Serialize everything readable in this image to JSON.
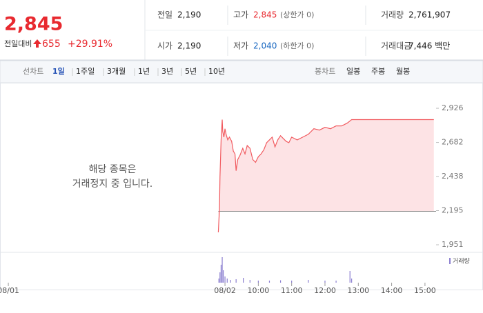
{
  "header": {
    "price": "2,845",
    "change_label": "전일대비",
    "change": "655",
    "change_rate": "+29.91%",
    "stats": [
      [
        {
          "label": "전일",
          "value": "2,190"
        },
        {
          "label": "고가",
          "value": "2,845",
          "note": "(상한가 0)"
        },
        {
          "label": "거래량",
          "value": "2,761,907"
        }
      ],
      [
        {
          "label": "시가",
          "value": "2,190"
        },
        {
          "label": "저가",
          "value": "2,040",
          "note": "(하한가 0)"
        },
        {
          "label": "거래대금",
          "value": "7,446 백만"
        }
      ]
    ],
    "prev_close": 2190
  },
  "tabs": {
    "line_label": "선차트",
    "line": [
      "1일",
      "1주일",
      "3개월",
      "1년",
      "3년",
      "5년",
      "10년"
    ],
    "candle_label": "봉차트",
    "candle": [
      "일봉",
      "주봉",
      "월봉"
    ]
  },
  "chart_data": {
    "type": "line",
    "annotation": [
      "해당 종목은",
      "거래정지 중 입니다."
    ],
    "x": [
      -12,
      -11,
      -10,
      -9,
      -7,
      -5,
      -4,
      -2,
      0,
      2,
      5,
      8,
      12,
      15,
      18,
      20,
      23,
      27,
      32,
      36,
      40,
      45,
      50,
      55,
      60,
      65,
      70,
      75,
      80,
      85,
      90,
      95,
      100,
      105,
      110,
      115,
      120,
      130,
      140,
      150,
      160,
      170,
      180,
      190,
      200,
      210,
      220,
      228,
      376
    ],
    "series": [
      {
        "name": "가격",
        "color": "#f15a5f",
        "values": [
          2040,
          2120,
          2190,
          2438,
          2700,
          2845,
          2760,
          2720,
          2780,
          2740,
          2700,
          2720,
          2690,
          2620,
          2600,
          2480,
          2560,
          2590,
          2640,
          2600,
          2660,
          2640,
          2560,
          2540,
          2580,
          2600,
          2630,
          2680,
          2700,
          2720,
          2650,
          2700,
          2730,
          2710,
          2690,
          2680,
          2720,
          2700,
          2720,
          2740,
          2780,
          2770,
          2790,
          2780,
          2800,
          2800,
          2820,
          2845,
          2845
        ]
      }
    ],
    "fill_color": "#fde3e5",
    "xlim": [
      -405,
      380
    ],
    "ylim": [
      1902,
      3069
    ],
    "xticks": [
      {
        "value": -390,
        "label": "08/01"
      },
      {
        "value": 0,
        "label": "08/02"
      },
      {
        "value": 60,
        "label": "10:00"
      },
      {
        "value": 120,
        "label": "11:00"
      },
      {
        "value": 180,
        "label": "12:00"
      },
      {
        "value": 240,
        "label": "13:00"
      },
      {
        "value": 300,
        "label": "14:00"
      },
      {
        "value": 360,
        "label": "15:00"
      }
    ],
    "yticks": [
      {
        "value": 2926,
        "label": "2,926"
      },
      {
        "value": 2682,
        "label": "2,682"
      },
      {
        "value": 2438,
        "label": "2,438"
      },
      {
        "value": 2195,
        "label": "2,195"
      },
      {
        "value": 1951,
        "label": "1,951"
      }
    ],
    "volume": {
      "name": "거래량",
      "color": "#8b7fd0",
      "ylim": [
        0,
        400000
      ],
      "x": [
        -11,
        -9,
        -7,
        -5,
        -3,
        0,
        4,
        10,
        20,
        33,
        45,
        60,
        80,
        100,
        120,
        150,
        180,
        200,
        225,
        228
      ],
      "values": [
        60000,
        150000,
        260000,
        370000,
        180000,
        90000,
        60000,
        40000,
        50000,
        70000,
        40000,
        30000,
        30000,
        35000,
        30000,
        40000,
        30000,
        30000,
        170000,
        60000
      ]
    }
  }
}
